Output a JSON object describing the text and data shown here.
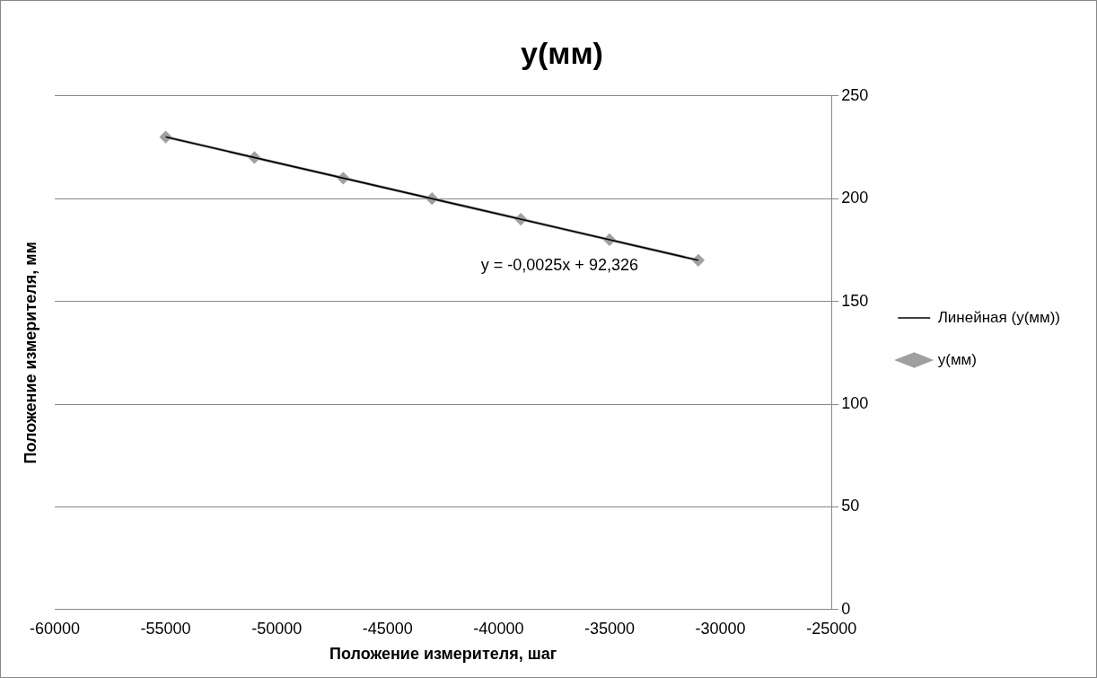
{
  "chart_data": {
    "type": "line",
    "title": "y(мм)",
    "xlabel": "Положение измерителя, шаг",
    "ylabel": "Положение измерителя, мм",
    "xlim": [
      -60000,
      -25000
    ],
    "xticks": [
      -60000,
      -55000,
      -50000,
      -45000,
      -40000,
      -35000,
      -30000,
      -25000
    ],
    "ylim": [
      0,
      250
    ],
    "yticks": [
      0,
      50,
      100,
      150,
      200,
      250
    ],
    "grid": "y",
    "legend": "right",
    "series": [
      {
        "name": "y(мм)",
        "color": "#a0a0a0",
        "marker": "diamond",
        "x": [
          -55000,
          -51000,
          -47000,
          -43000,
          -39000,
          -35000,
          -31000
        ],
        "values": [
          230,
          220,
          210,
          200,
          190,
          180,
          170
        ]
      },
      {
        "name": "Линейная (y(мм))",
        "color": "#000000",
        "marker": "none",
        "x": [
          -55000,
          -31000
        ],
        "values": [
          230,
          170
        ]
      }
    ],
    "annotations": [
      "y = -0,0025x + 92,326"
    ]
  }
}
